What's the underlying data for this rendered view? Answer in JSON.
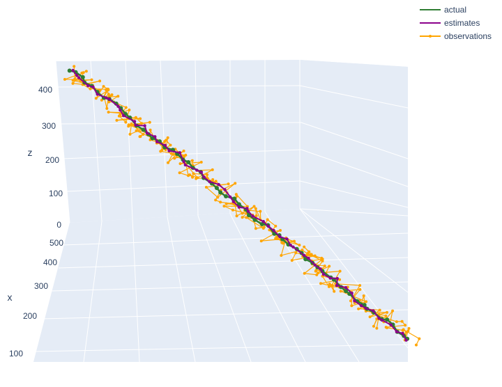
{
  "chart_data": {
    "type": "scatter3d",
    "axes": {
      "x": {
        "title": "x",
        "ticks": [
          "100",
          "200",
          "300",
          "400",
          "500"
        ]
      },
      "z": {
        "title": "z",
        "ticks": [
          "0",
          "100",
          "200",
          "300",
          "400"
        ]
      }
    },
    "legend": {
      "placement": "top-right",
      "entries": [
        "actual",
        "estimates",
        "observations"
      ]
    },
    "series": [
      {
        "name": "actual",
        "mode": "lines+markers",
        "color": "#2e7d32"
      },
      {
        "name": "estimates",
        "mode": "lines+markers",
        "color": "#8b008b"
      },
      {
        "name": "observations",
        "mode": "lines+markers",
        "color": "#ffa500"
      }
    ],
    "trajectory": {
      "start": {
        "x": 500,
        "z": 450
      },
      "end": {
        "x": 100,
        "z": 0
      },
      "points": 60,
      "observation_noise": 20
    },
    "background": "#e5ecf6",
    "grid": true
  }
}
